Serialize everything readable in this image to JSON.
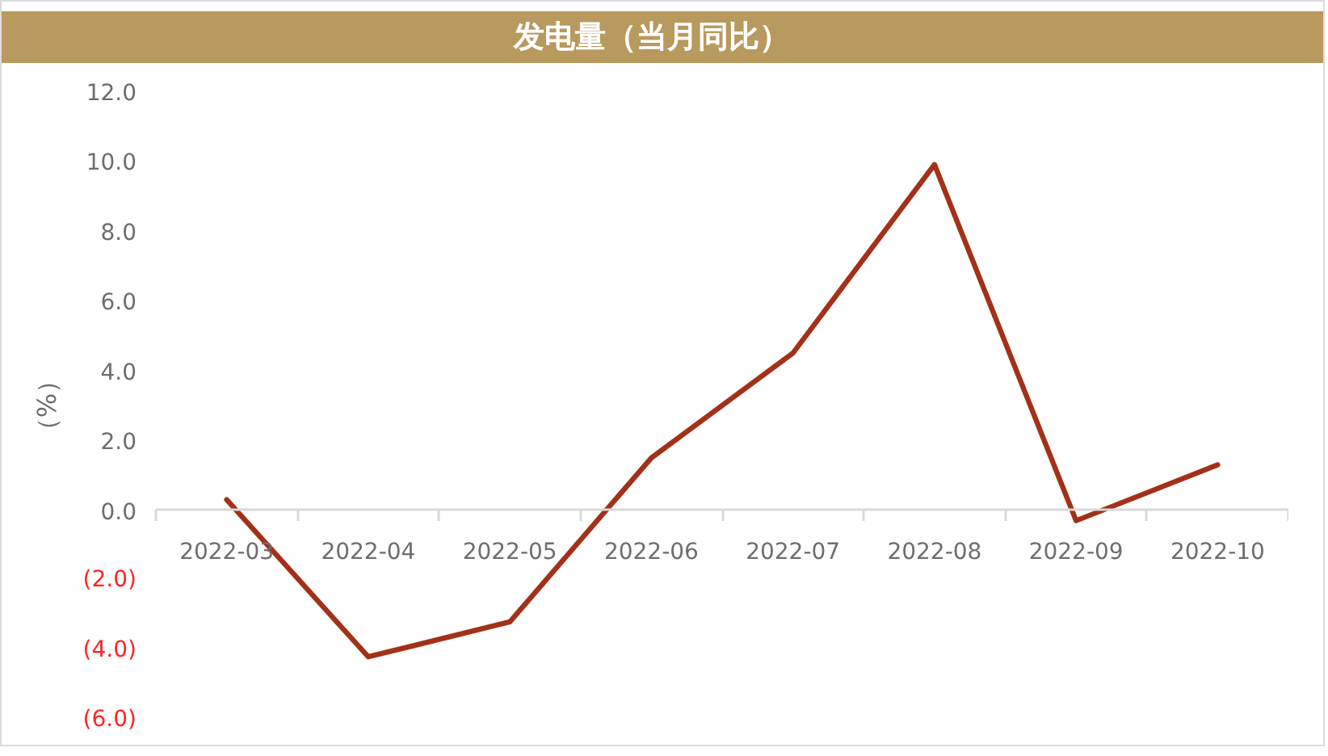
{
  "chart_data": {
    "type": "line",
    "title": "发电量（当月同比）",
    "ylabel": "（%）",
    "categories": [
      "2022-03",
      "2022-04",
      "2022-05",
      "2022-06",
      "2022-07",
      "2022-08",
      "2022-09",
      "2022-10"
    ],
    "values": [
      0.3,
      -4.2,
      -3.2,
      1.5,
      4.5,
      9.9,
      -0.3,
      1.3
    ],
    "color": "#a33119",
    "ylim": [
      -6,
      12
    ],
    "yticks": [
      {
        "value": -6,
        "label": "(6.0)"
      },
      {
        "value": -4,
        "label": "(4.0)"
      },
      {
        "value": -2,
        "label": "(2.0)"
      },
      {
        "value": 0,
        "label": "0.0"
      },
      {
        "value": 2,
        "label": "2.0"
      },
      {
        "value": 4,
        "label": "4.0"
      },
      {
        "value": 6,
        "label": "6.0"
      },
      {
        "value": 8,
        "label": "8.0"
      },
      {
        "value": 10,
        "label": "10.0"
      },
      {
        "value": 12,
        "label": "12.0"
      }
    ],
    "marker": "none",
    "line_style": "solid"
  }
}
